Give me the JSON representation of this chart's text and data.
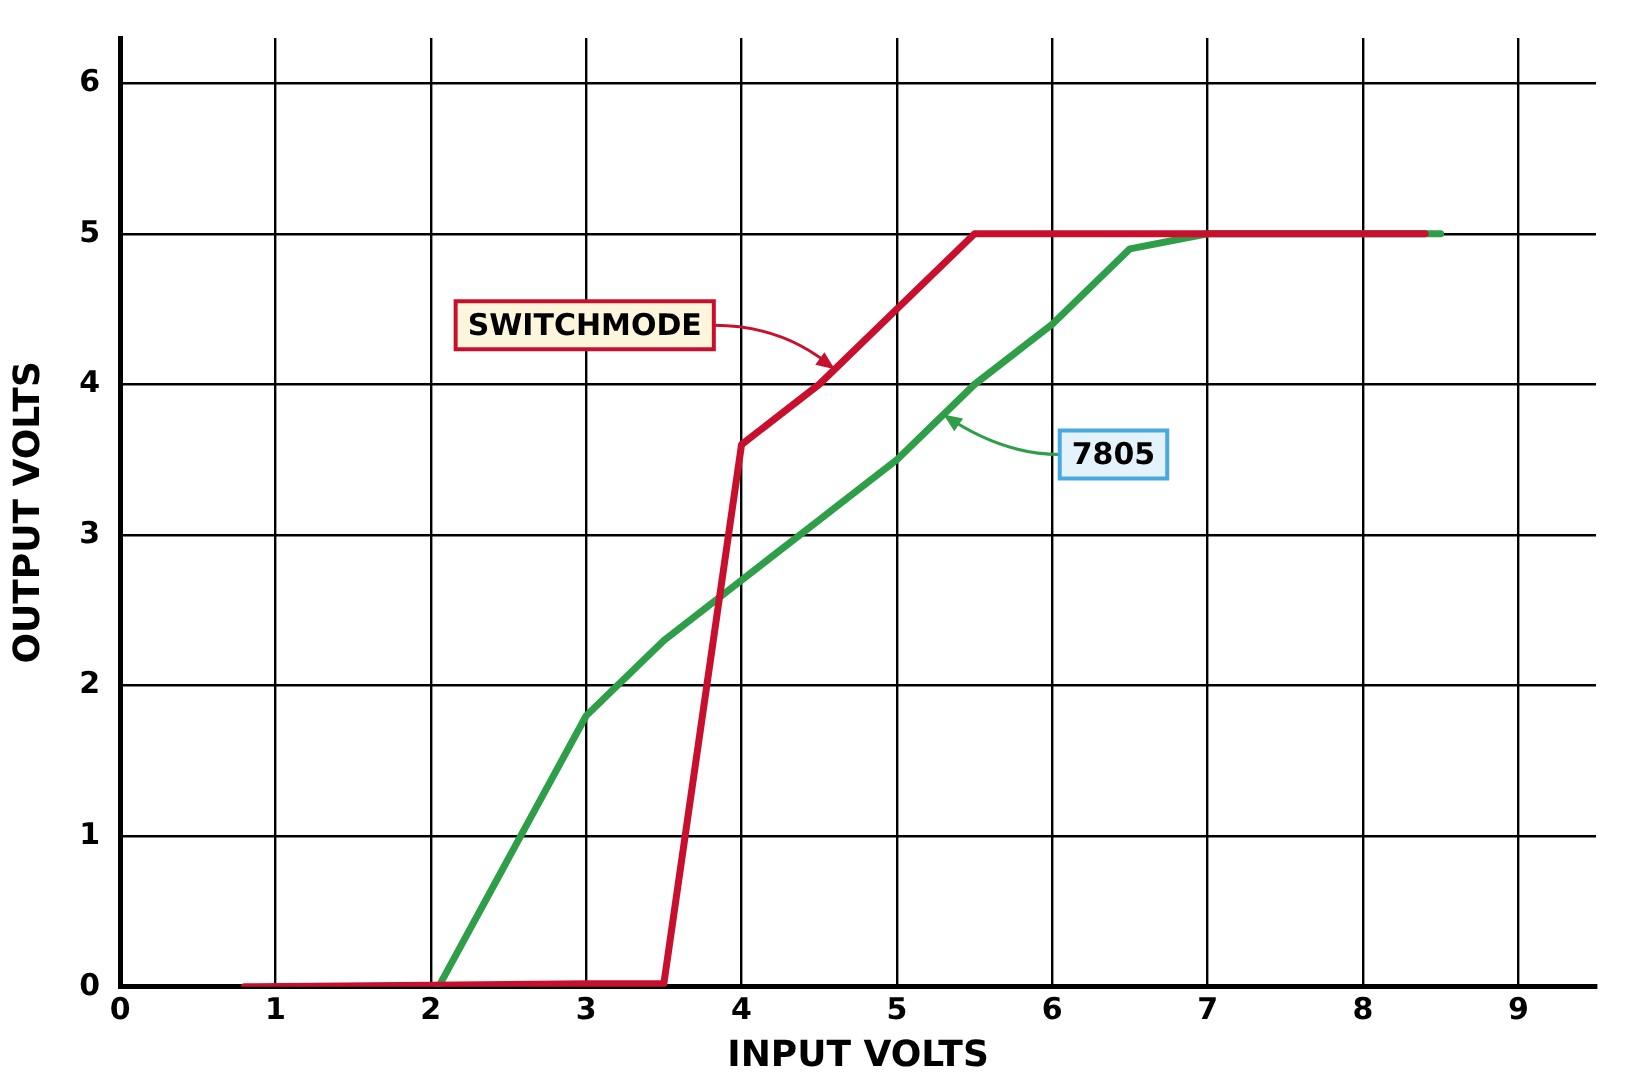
{
  "chart_data": {
    "type": "line",
    "xlabel": "INPUT VOLTS",
    "ylabel": "OUTPUT VOLTS",
    "xlim": [
      0,
      9.5
    ],
    "xticks": [
      0,
      1,
      2,
      3,
      4,
      5,
      6,
      7,
      8,
      9
    ],
    "ylim": [
      0,
      6.3
    ],
    "yticks": [
      0,
      1,
      2,
      3,
      4,
      5,
      6
    ],
    "grid": true,
    "legend": false,
    "marker": "none",
    "line_style": "solid",
    "series": [
      {
        "color": "#c8102e",
        "x": [
          0.8,
          2,
          3,
          3.5,
          4,
          4.5,
          5,
          5.5,
          6.5,
          7,
          7.5,
          8.4
        ],
        "values": [
          0,
          0.01,
          0.02,
          0.02,
          3.6,
          4.0,
          4.5,
          5,
          5,
          5,
          5,
          5
        ]
      },
      {
        "color": "#2e9e48",
        "x": [
          2.05,
          3,
          3.5,
          4,
          4.5,
          5,
          5.5,
          6,
          6.5,
          7,
          8.5
        ],
        "values": [
          0,
          1.8,
          2.3,
          2.7,
          3.1,
          3.5,
          4,
          4.4,
          4.9,
          5,
          5
        ]
      }
    ],
    "annotations": [
      {
        "text": "SWITCHMODE",
        "x": 4.6,
        "y": 4.1
      },
      {
        "text": "7805",
        "x": 5.3,
        "y": 3.8
      }
    ]
  }
}
